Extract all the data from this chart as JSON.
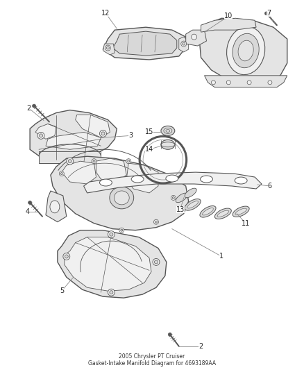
{
  "title": "2005 Chrysler PT Cruiser",
  "subtitle": "Gasket-Intake Manifold Diagram for 4693189AA",
  "background_color": "#ffffff",
  "outline_color": "#555555",
  "light_color": "#888888",
  "fig_width": 4.38,
  "fig_height": 5.33,
  "dpi": 100,
  "part_fill": "#f0f0f0",
  "part_fill_dark": "#d8d8d8",
  "part_fill_mid": "#e4e4e4"
}
